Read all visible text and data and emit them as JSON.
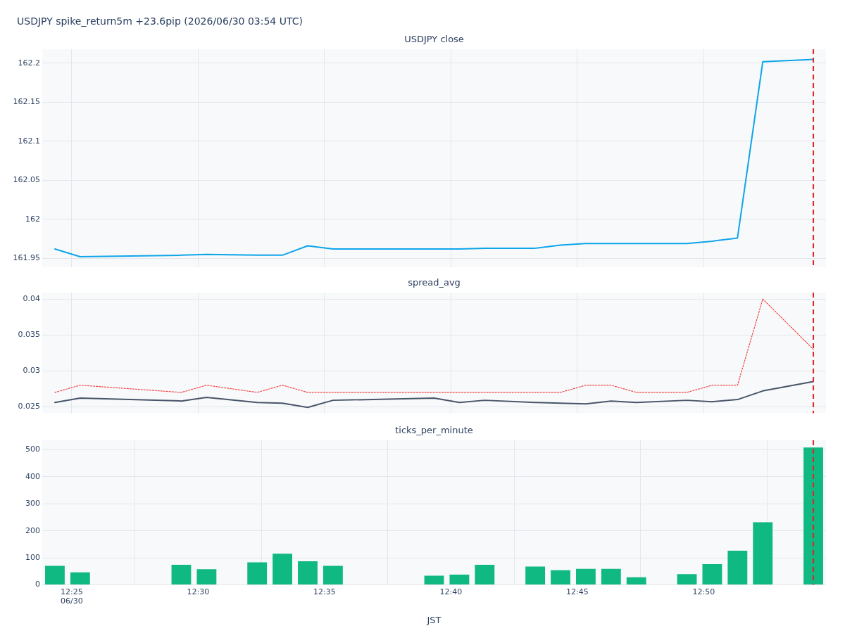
{
  "chart_data": [
    {
      "type": "line",
      "title": "USDJPY spike_return5m +23.6pip (2026/06/30 03:54 UTC)",
      "subtitle": "USDJPY close",
      "x": [
        "2026-06-30T12:24:20",
        "2026-06-30T12:25:20",
        "2026-06-30T12:29:20",
        "2026-06-30T12:30:20",
        "2026-06-30T12:32:20",
        "2026-06-30T12:33:20",
        "2026-06-30T12:34:20",
        "2026-06-30T12:35:20",
        "2026-06-30T12:39:20",
        "2026-06-30T12:40:20",
        "2026-06-30T12:41:20",
        "2026-06-30T12:43:20",
        "2026-06-30T12:44:20",
        "2026-06-30T12:45:20",
        "2026-06-30T12:46:20",
        "2026-06-30T12:47:20",
        "2026-06-30T12:49:20",
        "2026-06-30T12:50:20",
        "2026-06-30T12:51:20",
        "2026-06-30T12:52:20",
        "2026-06-30T12:54:20"
      ],
      "series": [
        {
          "color": "#0ea5e9",
          "values": [
            161.962,
            161.952,
            161.954,
            161.955,
            161.954,
            161.954,
            161.966,
            161.962,
            161.962,
            161.962,
            161.963,
            161.963,
            161.967,
            161.969,
            161.969,
            161.969,
            161.969,
            161.972,
            161.976,
            162.202,
            162.205
          ]
        }
      ],
      "xlim": [
        "2026-06-30T12:23:50",
        "2026-06-30T12:54:50"
      ],
      "xticks": [
        {
          "value": "2026-06-30T12:25",
          "label": null
        },
        {
          "value": "2026-06-30T12:30",
          "label": null
        },
        {
          "value": "2026-06-30T12:35",
          "label": null
        },
        {
          "value": "2026-06-30T12:40",
          "label": null
        },
        {
          "value": "2026-06-30T12:45",
          "label": null
        },
        {
          "value": "2026-06-30T12:50",
          "label": null
        }
      ],
      "ylim": [
        161.939,
        162.218
      ],
      "yticks": [
        161.95,
        162,
        162.05,
        162.1,
        162.15,
        162.2
      ],
      "grid": true,
      "tick_labels": "y",
      "marker": "none",
      "ref_lines": [
        {
          "axis": "x",
          "value": "2026-06-30T12:54:20",
          "color": "#dc2626",
          "line_style": "dashed"
        }
      ]
    },
    {
      "type": "line",
      "title": "spread_avg",
      "x": [
        "2026-06-30T12:24:20",
        "2026-06-30T12:25:20",
        "2026-06-30T12:29:20",
        "2026-06-30T12:30:20",
        "2026-06-30T12:32:20",
        "2026-06-30T12:33:20",
        "2026-06-30T12:34:20",
        "2026-06-30T12:35:20",
        "2026-06-30T12:39:20",
        "2026-06-30T12:40:20",
        "2026-06-30T12:41:20",
        "2026-06-30T12:43:20",
        "2026-06-30T12:44:20",
        "2026-06-30T12:45:20",
        "2026-06-30T12:46:20",
        "2026-06-30T12:47:20",
        "2026-06-30T12:49:20",
        "2026-06-30T12:50:20",
        "2026-06-30T12:51:20",
        "2026-06-30T12:52:20",
        "2026-06-30T12:54:20"
      ],
      "series": [
        {
          "color": "#475569",
          "values": [
            0.0256,
            0.0262,
            0.0258,
            0.0263,
            0.0256,
            0.0255,
            0.0249,
            0.0259,
            0.0262,
            0.0256,
            0.0259,
            0.0256,
            0.0255,
            0.0254,
            0.0258,
            0.0256,
            0.0259,
            0.0257,
            0.026,
            0.0272,
            0.0285
          ]
        },
        {
          "color": "#ef4444",
          "line_style": "dotted",
          "values": [
            0.027,
            0.028,
            0.027,
            0.028,
            0.027,
            0.028,
            0.027,
            0.027,
            0.027,
            0.027,
            0.027,
            0.027,
            0.027,
            0.028,
            0.028,
            0.027,
            0.027,
            0.028,
            0.028,
            0.04,
            0.033
          ]
        }
      ],
      "xlim": [
        "2026-06-30T12:23:50",
        "2026-06-30T12:54:50"
      ],
      "xticks": [
        {
          "value": "2026-06-30T12:25",
          "label": null
        },
        {
          "value": "2026-06-30T12:30",
          "label": null
        },
        {
          "value": "2026-06-30T12:35",
          "label": null
        },
        {
          "value": "2026-06-30T12:40",
          "label": null
        },
        {
          "value": "2026-06-30T12:45",
          "label": null
        },
        {
          "value": "2026-06-30T12:50",
          "label": null
        }
      ],
      "ylim": [
        0.0241,
        0.0409
      ],
      "yticks": [
        0.025,
        0.03,
        0.035,
        0.04
      ],
      "grid": true,
      "tick_labels": "y",
      "marker": "none",
      "ref_lines": [
        {
          "axis": "x",
          "value": "2026-06-30T12:54:20",
          "color": "#dc2626",
          "line_style": "dashed"
        }
      ]
    },
    {
      "type": "bar",
      "title": "ticks_per_minute",
      "xlabel": "JST",
      "x": [
        "2026-06-30T12:24:20",
        "2026-06-30T12:25:20",
        "2026-06-30T12:29:20",
        "2026-06-30T12:30:20",
        "2026-06-30T12:32:20",
        "2026-06-30T12:33:20",
        "2026-06-30T12:34:20",
        "2026-06-30T12:35:20",
        "2026-06-30T12:39:20",
        "2026-06-30T12:40:20",
        "2026-06-30T12:41:20",
        "2026-06-30T12:43:20",
        "2026-06-30T12:44:20",
        "2026-06-30T12:45:20",
        "2026-06-30T12:46:20",
        "2026-06-30T12:47:20",
        "2026-06-30T12:49:20",
        "2026-06-30T12:50:20",
        "2026-06-30T12:51:20",
        "2026-06-30T12:52:20",
        "2026-06-30T12:54:20"
      ],
      "values": [
        70,
        46,
        74,
        58,
        83,
        115,
        87,
        70,
        34,
        38,
        74,
        68,
        54,
        59,
        59,
        28,
        40,
        77,
        126,
        232,
        508
      ],
      "color": "#10b981",
      "xlim": [
        "2026-06-30T12:23:50",
        "2026-06-30T12:54:50"
      ],
      "xticks": [
        {
          "value": "2026-06-30T12:25",
          "label": "12:25\n06/30"
        },
        {
          "value": "2026-06-30T12:30",
          "label": "12:30"
        },
        {
          "value": "2026-06-30T12:35",
          "label": "12:35"
        },
        {
          "value": "2026-06-30T12:40",
          "label": "12:40"
        },
        {
          "value": "2026-06-30T12:45",
          "label": "12:45"
        },
        {
          "value": "2026-06-30T12:50",
          "label": "12:50"
        }
      ],
      "ylim": [
        0,
        535
      ],
      "yticks": [
        0,
        100,
        200,
        300,
        400,
        500
      ],
      "grid": true,
      "ref_lines": [
        {
          "axis": "x",
          "value": "2026-06-30T12:54:20",
          "color": "#dc2626",
          "line_style": "dashed"
        }
      ]
    }
  ]
}
